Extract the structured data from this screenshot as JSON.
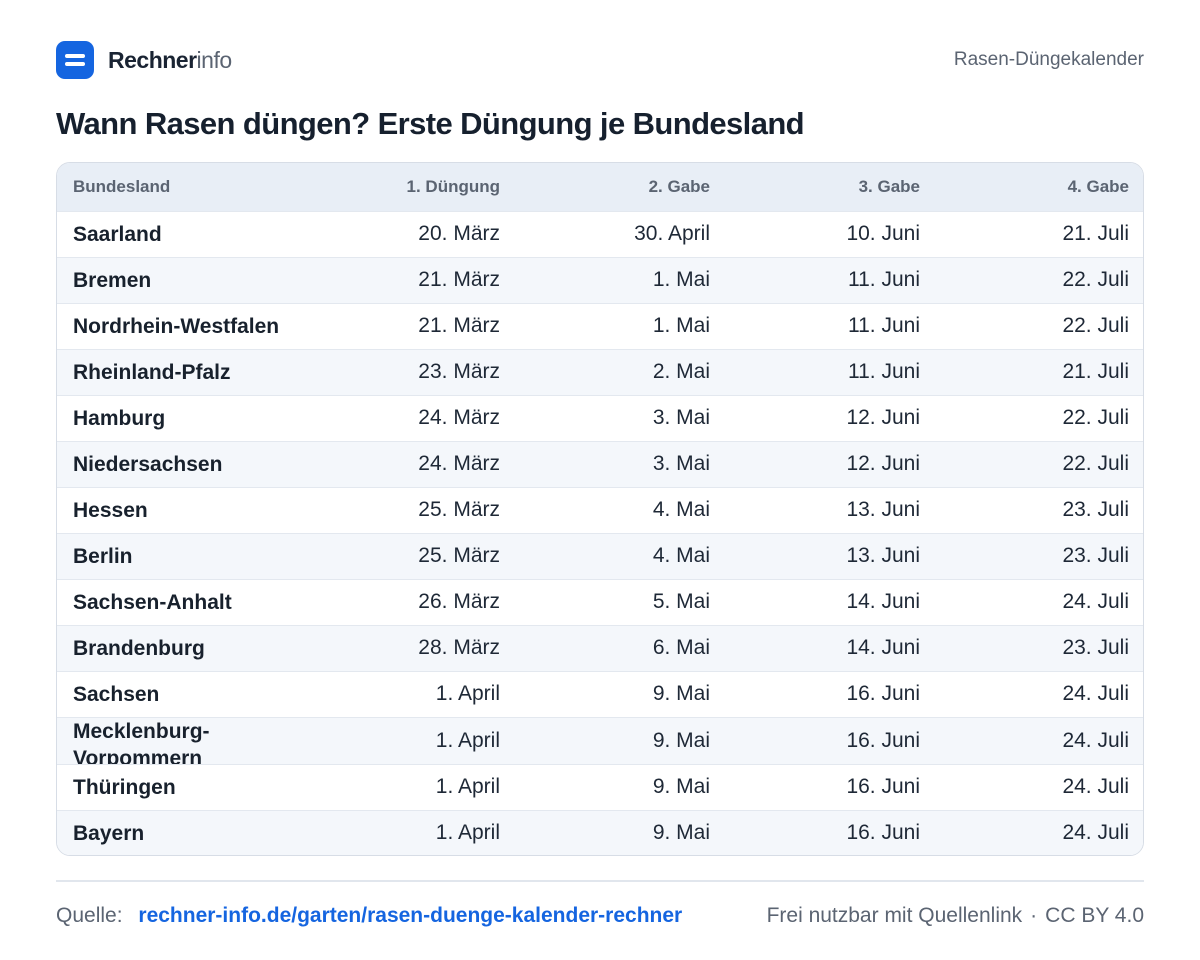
{
  "brand": {
    "name_strong": "Rechner",
    "name_light": "info"
  },
  "header": {
    "right_label": "Rasen-Düngekalender"
  },
  "title": "Wann Rasen düngen? Erste Düngung je Bundesland",
  "table": {
    "columns": [
      "Bundesland",
      "1. Düngung",
      "2. Gabe",
      "3. Gabe",
      "4. Gabe"
    ],
    "rows": [
      [
        "Saarland",
        "20. März",
        "30. April",
        "10. Juni",
        "21. Juli"
      ],
      [
        "Bremen",
        "21. März",
        "1. Mai",
        "11. Juni",
        "22. Juli"
      ],
      [
        "Nordrhein-Westfalen",
        "21. März",
        "1. Mai",
        "11. Juni",
        "22. Juli"
      ],
      [
        "Rheinland-Pfalz",
        "23. März",
        "2. Mai",
        "11. Juni",
        "21. Juli"
      ],
      [
        "Hamburg",
        "24. März",
        "3. Mai",
        "12. Juni",
        "22. Juli"
      ],
      [
        "Niedersachsen",
        "24. März",
        "3. Mai",
        "12. Juni",
        "22. Juli"
      ],
      [
        "Hessen",
        "25. März",
        "4. Mai",
        "13. Juni",
        "23. Juli"
      ],
      [
        "Berlin",
        "25. März",
        "4. Mai",
        "13. Juni",
        "23. Juli"
      ],
      [
        "Sachsen-Anhalt",
        "26. März",
        "5. Mai",
        "14. Juni",
        "24. Juli"
      ],
      [
        "Brandenburg",
        "28. März",
        "6. Mai",
        "14. Juni",
        "23. Juli"
      ],
      [
        "Sachsen",
        "1. April",
        "9. Mai",
        "16. Juni",
        "24. Juli"
      ],
      [
        "Mecklenburg-Vorpommern",
        "1. April",
        "9. Mai",
        "16. Juni",
        "24. Juli"
      ],
      [
        "Thüringen",
        "1. April",
        "9. Mai",
        "16. Juni",
        "24. Juli"
      ],
      [
        "Bayern",
        "1. April",
        "9. Mai",
        "16. Juni",
        "24. Juli"
      ]
    ]
  },
  "footer": {
    "source_label": "Quelle:",
    "source_link": "rechner-info.de/garten/rasen-duenge-kalender-rechner",
    "license_text": "Frei nutzbar mit Quellenlink",
    "separator": "·",
    "license": "CC BY 4.0"
  },
  "colors": {
    "accent": "#1565e0",
    "header_bg": "#e8eef6",
    "stripe_bg": "#f4f7fb"
  }
}
